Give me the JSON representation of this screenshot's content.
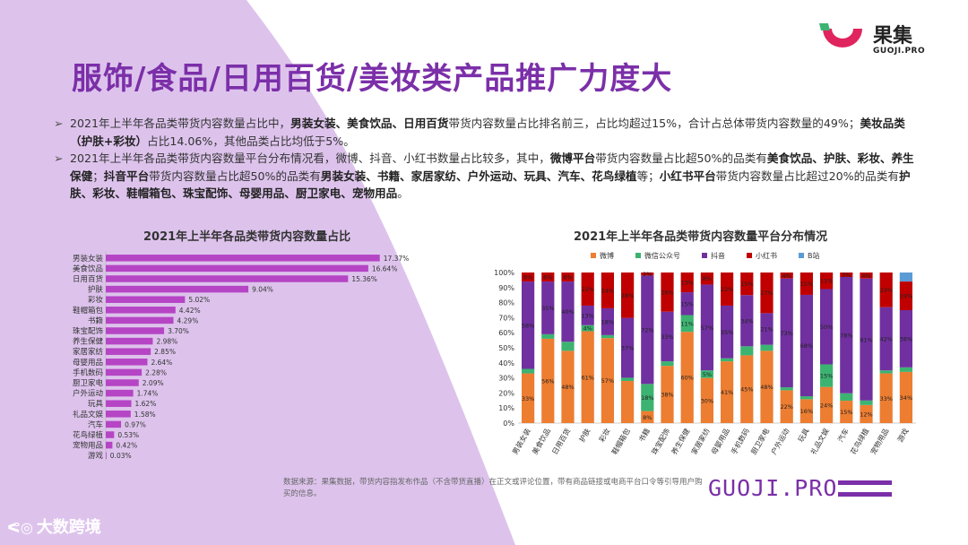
{
  "colors": {
    "primary": "#7b2fa8",
    "bar": "#b545c4",
    "weibo": "#ed7d31",
    "wechat": "#3cb371",
    "douyin": "#7030a0",
    "xhs": "#c00000",
    "bzhan": "#5b9bd5"
  },
  "logo": {
    "cn": "果集",
    "en": "GUOJI.PRO"
  },
  "title": "服饰/食品/日用百货/美妆类产品推广力度大",
  "bullets": {
    "b1": [
      "2021年上半年各品类带货内容数量占比中，",
      "男装女装、美食饮品、日用百货",
      "带货内容数量占比排名前三，占比均超过15%，合计占总体带货内容数量的49%；",
      "美妆品类（护肤+彩妆）",
      "占比14.06%，其他品类占比均低于5%。"
    ],
    "b2": [
      "2021年上半年各品类带货内容数量平台分布情况看，微博、抖音、小红书数量占比较多，其中，",
      "微博平台",
      "带货内容数量占比超50%的品类有",
      "美食饮品、护肤、彩妆、养生保健",
      "；",
      "抖音平台",
      "带货内容数量占比超50%的品类有",
      "男装女装、书籍、家居家纺、户外运动、玩具、汽车、花鸟绿植",
      "等；",
      "小红书平台",
      "带货内容数量占比超过20%的品类有",
      "护肤、彩妆、鞋帽箱包、珠宝配饰、母婴用品、厨卫家电、宠物用品",
      "。"
    ]
  },
  "footnote": "数据来源：果集数据，带货内容指发布作品（不含带货直播）在正文或评论位置，带有商品链接或电商平台口令等引导用户购买的信息。",
  "watermark": "GUOJI.PRO",
  "brand2": "大数跨境",
  "chart_data": [
    {
      "type": "bar",
      "orientation": "horizontal",
      "title": "2021年上半年各品类带货内容数量占比",
      "categories": [
        "男装女装",
        "美食饮品",
        "日用百货",
        "护肤",
        "彩妆",
        "鞋帽箱包",
        "书籍",
        "珠宝配饰",
        "养生保健",
        "家居家纺",
        "母婴用品",
        "手机数码",
        "厨卫家电",
        "户外运动",
        "玩具",
        "礼品文娱",
        "汽车",
        "花鸟绿植",
        "宠物用品",
        "游戏"
      ],
      "values": [
        17.37,
        16.64,
        15.36,
        9.04,
        5.02,
        4.42,
        4.29,
        3.7,
        2.98,
        2.85,
        2.64,
        2.28,
        2.09,
        1.74,
        1.62,
        1.58,
        0.97,
        0.53,
        0.42,
        0.03
      ],
      "labels": [
        "17.37%",
        "16.64%",
        "15.36%",
        "9.04%",
        "5.02%",
        "4.42%",
        "4.29%",
        "3.70%",
        "2.98%",
        "2.85%",
        "2.64%",
        "2.28%",
        "2.09%",
        "1.74%",
        "1.62%",
        "1.58%",
        "0.97%",
        "0.53%",
        "0.42%",
        "0.03%"
      ],
      "xlim": [
        0,
        20
      ],
      "grid": false
    },
    {
      "type": "bar",
      "stacked": true,
      "percent": true,
      "title": "2021年上半年各品类带货内容数量平台分布情况",
      "categories": [
        "男装女装",
        "美食饮品",
        "日用百货",
        "护肤",
        "彩妆",
        "鞋帽箱包",
        "书籍",
        "珠宝配饰",
        "养生保健",
        "家居家纺",
        "母婴用品",
        "手机数码",
        "厨卫家电",
        "户外运动",
        "玩具",
        "礼品文娱",
        "汽车",
        "花鸟绿植",
        "宠物用品",
        "游戏"
      ],
      "yticks": [
        "0%",
        "10%",
        "20%",
        "30%",
        "40%",
        "50%",
        "60%",
        "70%",
        "80%",
        "90%",
        "100%"
      ],
      "ylim": [
        0,
        100
      ],
      "legend_position": "top",
      "series": [
        {
          "name": "微博",
          "color": "#ed7d31",
          "values": [
            33,
            56,
            48,
            61,
            57,
            26,
            8,
            38,
            60,
            30,
            41,
            45,
            48,
            22,
            16,
            24,
            15,
            12,
            33,
            34
          ],
          "labels": [
            "33%",
            "56%",
            "48%",
            "61%",
            "57%",
            "",
            "8%",
            "38%",
            "60%",
            "30%",
            "41%",
            "45%",
            "48%",
            "22%",
            "16%",
            "24%",
            "15%",
            "12%",
            "33%",
            "34%"
          ]
        },
        {
          "name": "微信公众号",
          "color": "#3cb371",
          "values": [
            3,
            3,
            6,
            4,
            2,
            2,
            18,
            3,
            11,
            5,
            2,
            6,
            4,
            2,
            2,
            15,
            5,
            3,
            2,
            3
          ],
          "labels": [
            "",
            "",
            "",
            "4%",
            "",
            "",
            "18%",
            "",
            "11%",
            "5%",
            "",
            "",
            "",
            "",
            "",
            "15%",
            "",
            "",
            "",
            ""
          ]
        },
        {
          "name": "抖音",
          "color": "#7030a0",
          "values": [
            58,
            35,
            40,
            13,
            18,
            37,
            72,
            33,
            15,
            57,
            35,
            34,
            21,
            73,
            68,
            50,
            78,
            81,
            42,
            38
          ],
          "labels": [
            "58%",
            "35%",
            "40%",
            "13%",
            "18%",
            "37%",
            "72%",
            "33%",
            "15%",
            "57%",
            "35%",
            "34%",
            "21%",
            "73%",
            "68%",
            "50%",
            "78%",
            "81%",
            "42%",
            "38%"
          ]
        },
        {
          "name": "小红书",
          "color": "#c00000",
          "values": [
            6,
            6,
            6,
            22,
            24,
            28,
            2,
            26,
            13,
            8,
            22,
            15,
            27,
            4,
            15,
            11,
            3,
            4,
            23,
            19
          ],
          "labels": [
            "6%",
            "6%",
            "6%",
            "22%",
            "24%",
            "28%",
            "2%",
            "26%",
            "13%",
            "8%",
            "22%",
            "15%",
            "27%",
            "4%",
            "15%",
            "11%",
            "3%",
            "4%",
            "23%",
            "19%"
          ]
        },
        {
          "name": "B站",
          "color": "#5b9bd5",
          "values": [
            0,
            0,
            0,
            0,
            0,
            0,
            0,
            0,
            0,
            0,
            0,
            0,
            0,
            0,
            0,
            0,
            0,
            0,
            0,
            6
          ],
          "labels": [
            "",
            "",
            "",
            "",
            "",
            "",
            "",
            "",
            "",
            "",
            "",
            "",
            "",
            "",
            "",
            "",
            "",
            "",
            "",
            ""
          ]
        }
      ]
    }
  ]
}
